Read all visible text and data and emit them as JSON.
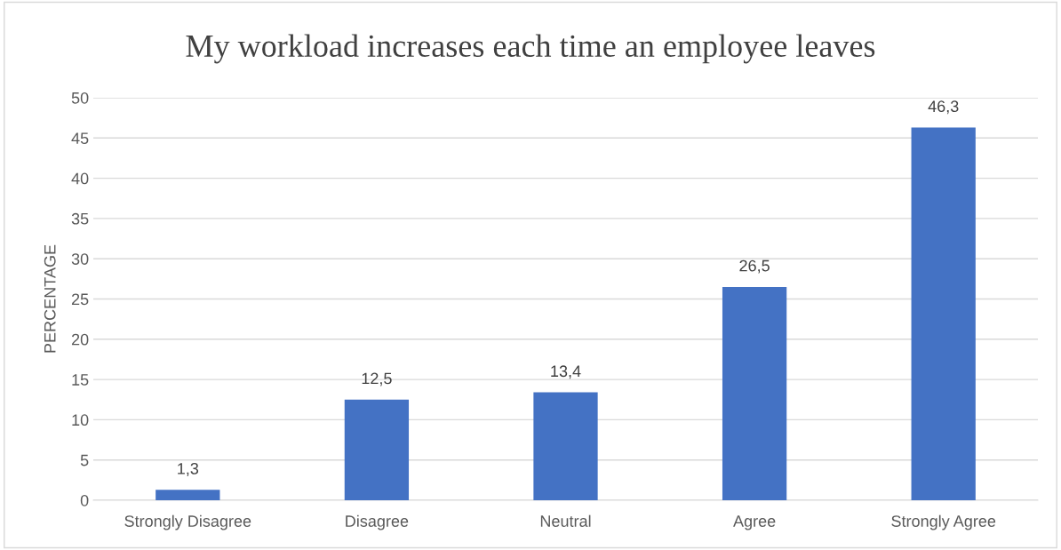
{
  "chart_data": {
    "type": "bar",
    "title": "My workload increases each time an employee leaves",
    "ylabel": "PERCENTAGE",
    "categories": [
      "Strongly Disagree",
      "Disagree",
      "Neutral",
      "Agree",
      "Strongly Agree"
    ],
    "values": [
      1.3,
      12.5,
      13.4,
      26.5,
      46.3
    ],
    "value_labels": [
      "1,3",
      "12,5",
      "13,4",
      "26,5",
      "46,3"
    ],
    "color": "#4472c4",
    "ylim": [
      0,
      50
    ],
    "yticks": [
      0,
      5,
      10,
      15,
      20,
      25,
      30,
      35,
      40,
      45,
      50
    ],
    "grid": "y",
    "legend": false
  }
}
